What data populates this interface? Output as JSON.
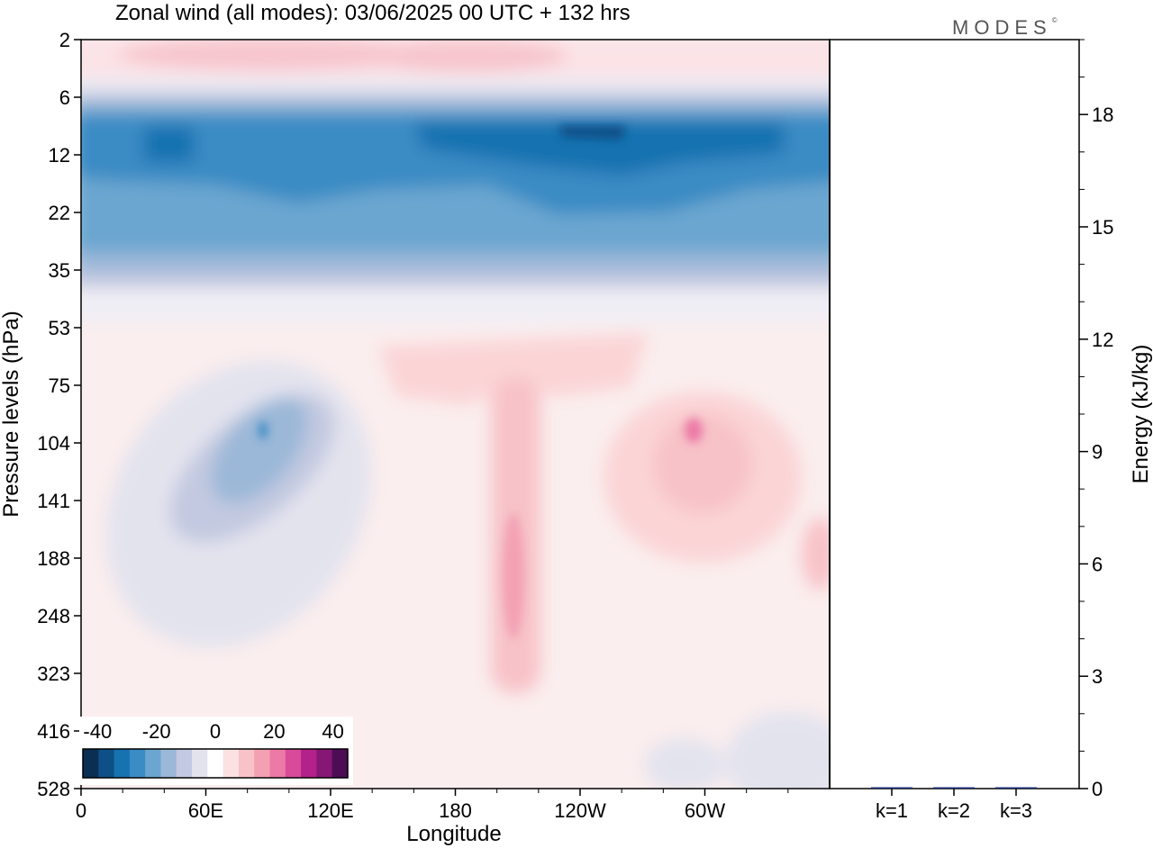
{
  "chart_data": [
    {
      "type": "heatmap",
      "title": "Zonal wind (all modes):  03/06/2025  00 UTC  + 132 hrs",
      "xlabel": "Longitude",
      "ylabel": "Pressure levels (hPa)",
      "x_ticks": [
        "0",
        "60E",
        "120E",
        "180",
        "120W",
        "60W"
      ],
      "x_tick_degrees": [
        0,
        60,
        120,
        180,
        240,
        300
      ],
      "xlim": [
        0,
        360
      ],
      "y_levels": [
        "2",
        "6",
        "12",
        "22",
        "35",
        "53",
        "75",
        "104",
        "141",
        "188",
        "248",
        "323",
        "416",
        "528"
      ],
      "colorbar": {
        "tick_labels": [
          "-40",
          "-20",
          "0",
          "20",
          "40"
        ],
        "range": [
          -45,
          45
        ],
        "colors": [
          "#0a2f52",
          "#0d4f86",
          "#1772b0",
          "#3b8bc4",
          "#6aa6d0",
          "#9bb8d8",
          "#c3c9e0",
          "#e3e3ee",
          "#ffffff",
          "#fbe1e2",
          "#f7c2c8",
          "#f3a0b2",
          "#ec79a6",
          "#d94a9a",
          "#b3218a",
          "#861775",
          "#4d0d55"
        ]
      },
      "features": [
        {
          "label": "stratospheric easterly band",
          "lon_range": [
            0,
            360
          ],
          "hPa_range": [
            8,
            35
          ],
          "value": -30
        },
        {
          "label": "strongest easterlies",
          "lon_range": [
            160,
            340
          ],
          "hPa_range": [
            9,
            14
          ],
          "value": -40
        },
        {
          "label": "upper westerlies",
          "lon_range": [
            0,
            360
          ],
          "hPa_range": [
            2,
            5
          ],
          "value": 8
        },
        {
          "label": "easterly cell",
          "lon_range": [
            40,
            120
          ],
          "hPa_range": [
            80,
            190
          ],
          "value": -22
        },
        {
          "label": "westerly core",
          "lon_range": [
            270,
            330
          ],
          "hPa_range": [
            85,
            160
          ],
          "value": 18
        },
        {
          "label": "westerly jet",
          "lon_range": [
            190,
            210
          ],
          "hPa_range": [
            75,
            260
          ],
          "value": 10
        }
      ]
    },
    {
      "type": "bar",
      "ylabel": "Energy (kJ/kg)",
      "categories": [
        "k=1",
        "k=2",
        "k=3"
      ],
      "values": [
        0.02,
        0.02,
        0.01
      ],
      "ylim": [
        0,
        20
      ],
      "y_ticks": [
        "0",
        "3",
        "6",
        "9",
        "12",
        "15",
        "18"
      ]
    }
  ],
  "brand": {
    "text": "MODES",
    "mark": "©"
  }
}
